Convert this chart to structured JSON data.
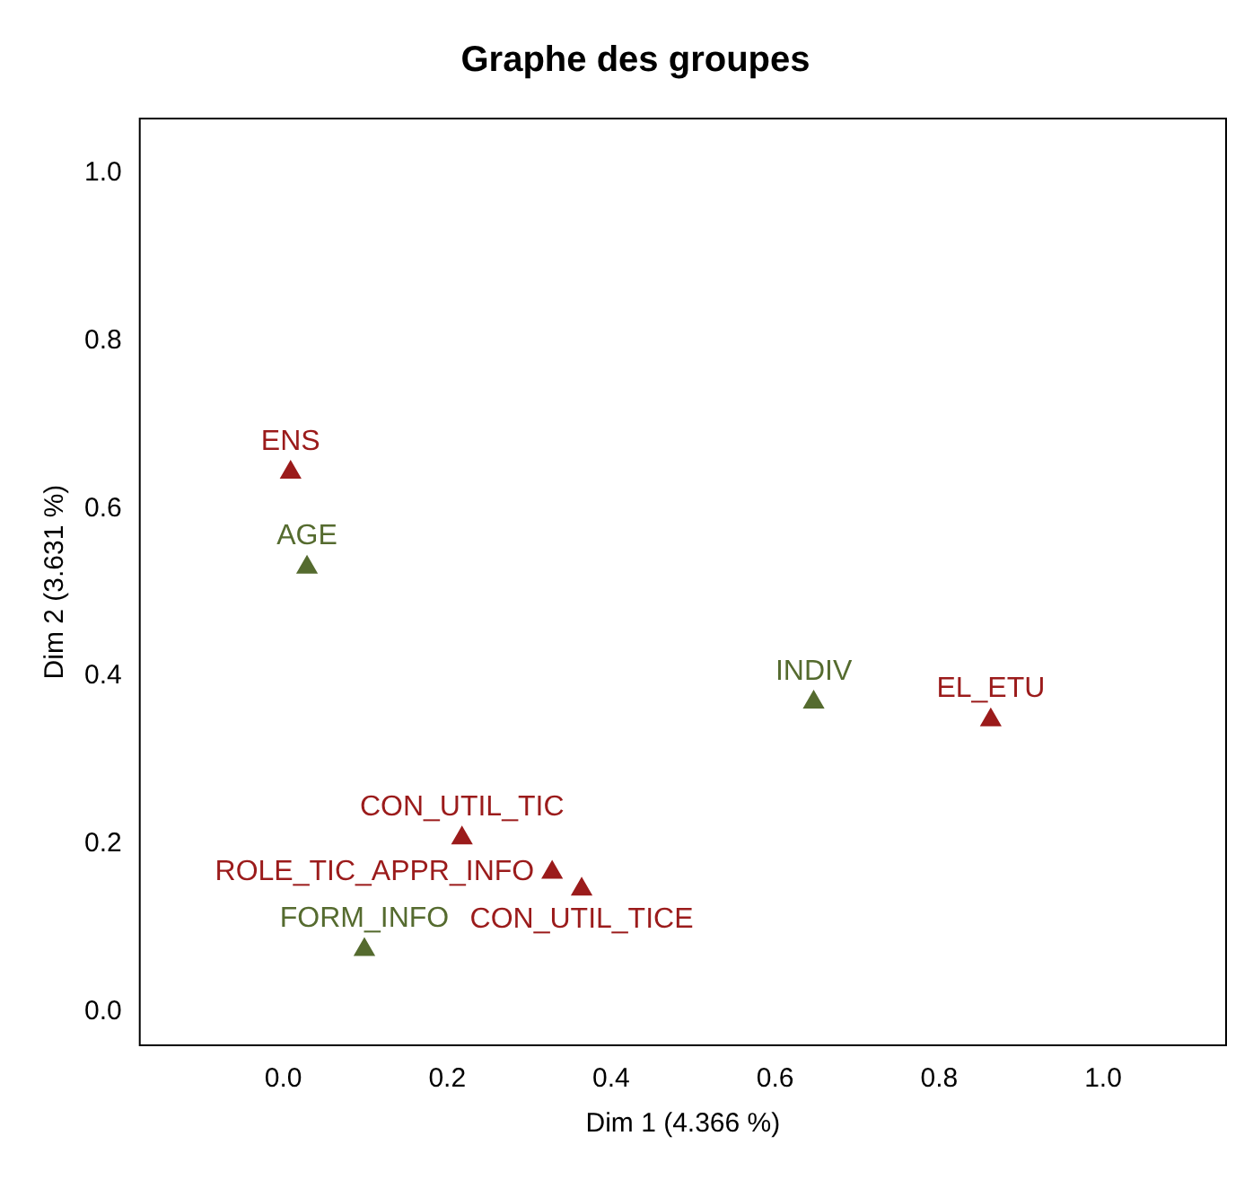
{
  "chart_data": {
    "type": "scatter",
    "title": "Graphe des groupes",
    "xlabel": "Dim 1 (4.366 %)",
    "ylabel": "Dim 2 (3.631 %)",
    "xlim": [
      -0.175,
      1.15
    ],
    "ylim": [
      -0.04,
      1.065
    ],
    "xticks": [
      {
        "value": 0,
        "label": "0.0"
      },
      {
        "value": 0.2,
        "label": "0.2"
      },
      {
        "value": 0.4,
        "label": "0.4"
      },
      {
        "value": 0.6,
        "label": "0.6"
      },
      {
        "value": 0.8,
        "label": "0.8"
      },
      {
        "value": 1,
        "label": "1.0"
      }
    ],
    "yticks": [
      {
        "value": 0,
        "label": "0.0"
      },
      {
        "value": 0.2,
        "label": "0.2"
      },
      {
        "value": 0.4,
        "label": "0.4"
      },
      {
        "value": 0.6,
        "label": "0.6"
      },
      {
        "value": 0.8,
        "label": "0.8"
      },
      {
        "value": 1,
        "label": "1.0"
      }
    ],
    "grid": false,
    "legend": false,
    "marker": "triangle",
    "series": [
      {
        "color": "#9b1b1b",
        "x": [
          0.009,
          0.863,
          0.218,
          0.328,
          0.364
        ],
        "values": [
          0.643,
          0.348,
          0.207,
          0.166,
          0.146
        ]
      },
      {
        "color": "#556b2f",
        "x": [
          0.029,
          0.647,
          0.099
        ],
        "values": [
          0.53,
          0.369,
          0.074
        ]
      }
    ],
    "annotations": [
      {
        "text": "ENS",
        "x": 0.009,
        "y": 0.643
      },
      {
        "text": "EL_ETU",
        "x": 0.863,
        "y": 0.348
      },
      {
        "text": "CON_UTIL_TIC",
        "x": 0.218,
        "y": 0.207
      },
      {
        "text": "ROLE_TIC_APPR_INFO",
        "x": 0.328,
        "y": 0.166
      },
      {
        "text": "CON_UTIL_TICE",
        "x": 0.364,
        "y": 0.146
      },
      {
        "text": "AGE",
        "x": 0.029,
        "y": 0.53
      },
      {
        "text": "INDIV",
        "x": 0.647,
        "y": 0.369
      },
      {
        "text": "FORM_INFO",
        "x": 0.099,
        "y": 0.074
      }
    ]
  }
}
